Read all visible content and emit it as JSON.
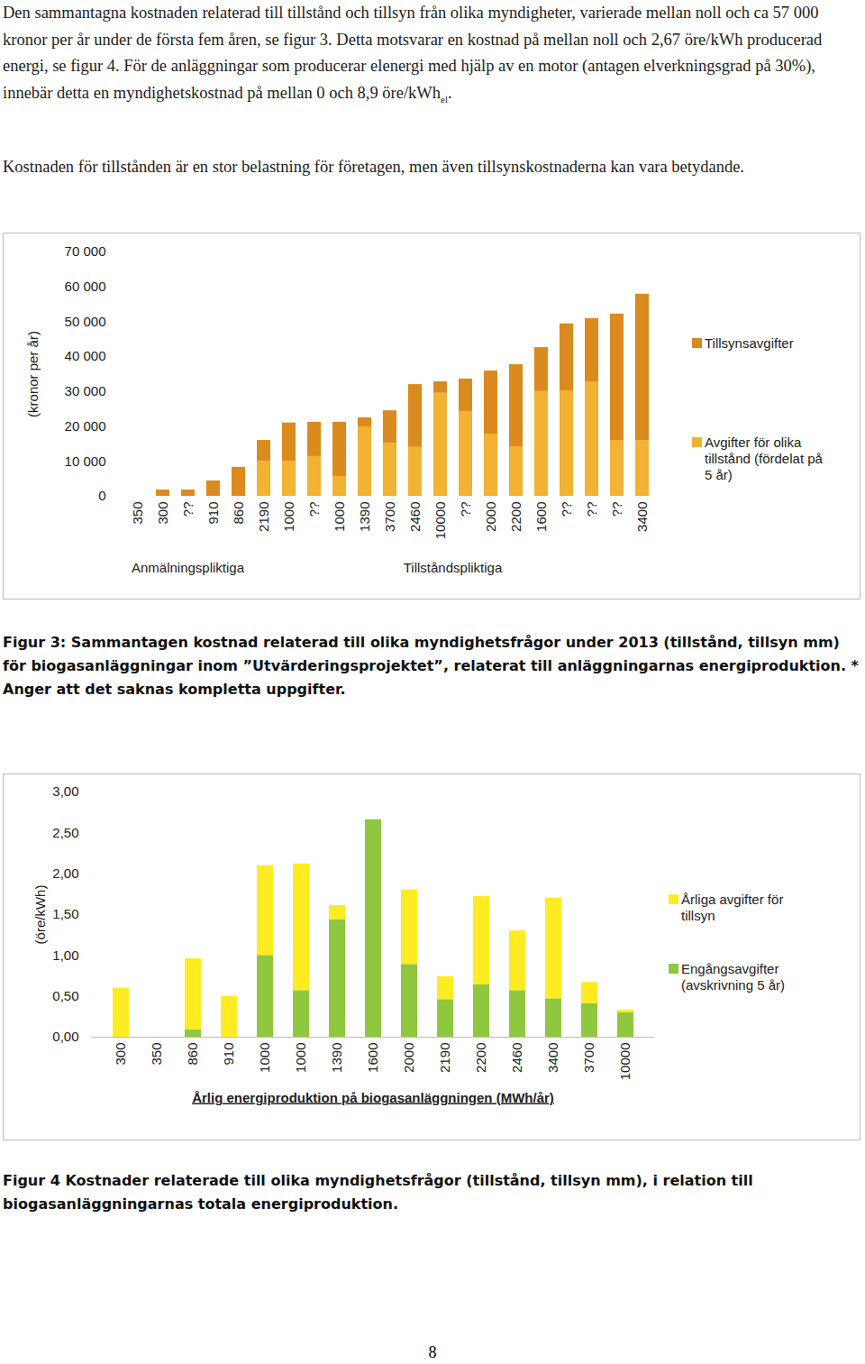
{
  "paragraphs": [
    {
      "text": "Den sammantagna kostnaden relaterad till tillstånd och tillsyn från olika myndigheter, varierade mellan noll och ca 57 000 kronor per år under de första fem åren, se figur 3. Detta motsvarar en kostnad på mellan noll och 2,67 öre/kWh producerad energi, se figur 4. För de anläggningar som producerar elenergi med hjälp av en motor (antagen elverkningsgrad på 30%), innebär detta en myndighetskostnad på mellan 0 och 8,9 öre/kWh",
      "subscript": "el",
      "tail": "."
    },
    {
      "text": "Kostnaden för tillstånden är en stor belastning för företagen, men även tillsynskostnaderna kan vara betydande."
    }
  ],
  "chart_data": [
    {
      "type": "bar",
      "stacked": true,
      "y_label": "(kronor per år)",
      "categories": [
        "350",
        "300",
        "??",
        "910",
        "860",
        "2190",
        "1000",
        "??",
        "1000",
        "1390",
        "3700",
        "2460",
        "10000",
        "??",
        "2000",
        "2200",
        "1600",
        "??",
        "??",
        "??",
        "3400"
      ],
      "groups": [
        {
          "name": "Anmälningspliktiga",
          "count": 5
        },
        {
          "name": "Tillståndspliktiga",
          "count": 16
        }
      ],
      "series": [
        {
          "name": "Avgifter för olika tillstånd (fördelat på 5 år)",
          "color": "#f2b232",
          "values": [
            0,
            0,
            0,
            0,
            0,
            10000,
            10000,
            11400,
            5700,
            19900,
            15200,
            14000,
            29500,
            24300,
            17800,
            14200,
            30000,
            30200,
            32800,
            16000,
            16000
          ]
        },
        {
          "name": "Tillsynsavgifter",
          "color": "#db8a1d",
          "values": [
            0,
            1800,
            1800,
            4400,
            8300,
            6000,
            11000,
            9800,
            15500,
            2600,
            9300,
            18000,
            3300,
            9300,
            18100,
            23500,
            12600,
            19200,
            18100,
            36200,
            41900
          ]
        }
      ],
      "ylim": [
        0,
        70000
      ],
      "yticks": [
        0,
        {
          "value": 10000,
          "label": "10 000"
        },
        {
          "value": 20000,
          "label": "20 000"
        },
        {
          "value": 30000,
          "label": "30 000"
        },
        {
          "value": 40000,
          "label": "40 000"
        },
        {
          "value": 50000,
          "label": "50 000"
        },
        {
          "value": 60000,
          "label": "60 000"
        },
        {
          "value": 70000,
          "label": "70 000"
        }
      ],
      "grid": false,
      "legend": "right",
      "caption": "Figur 3: Sammantagen kostnad relaterad till olika myndighetsfrågor under 2013 (tillstånd, tillsyn mm) för biogasanläggningar inom ”Utvärderingsprojektet”, relaterat till anläggningarnas energiproduktion. * Anger att det saknas kompletta uppgifter."
    },
    {
      "type": "bar",
      "stacked": true,
      "y_label": "(öre/kWh)",
      "x_label": "Årlig energiproduktion på biogasanläggningen (MWh/år)",
      "categories": [
        "300",
        "350",
        "860",
        "910",
        "1000",
        "1000",
        "1390",
        "1600",
        "2000",
        "2190",
        "2200",
        "2460",
        "3400",
        "3700",
        "10000"
      ],
      "series": [
        {
          "name": "Engångsavgifter (avskrivning 5 år)",
          "color": "#8fc73e",
          "values": [
            0,
            0,
            0.09,
            0,
            1.0,
            0.57,
            1.44,
            2.66,
            0.89,
            0.46,
            0.64,
            0.57,
            0.47,
            0.41,
            0.3
          ]
        },
        {
          "name": "Årliga avgifter för tillsyn",
          "color": "#fdec21",
          "values": [
            0.6,
            0,
            0.87,
            0.5,
            1.1,
            1.55,
            0.17,
            0,
            0.91,
            0.28,
            1.08,
            0.73,
            1.23,
            0.26,
            0.03
          ]
        }
      ],
      "ylim": [
        0,
        3
      ],
      "yticks": [
        {
          "value": 0,
          "label": "0,00"
        },
        {
          "value": 0.5,
          "label": "0,50"
        },
        {
          "value": 1,
          "label": "1,00"
        },
        {
          "value": 1.5,
          "label": "1,50"
        },
        {
          "value": 2,
          "label": "2,00"
        },
        {
          "value": 2.5,
          "label": "2,50"
        },
        {
          "value": 3,
          "label": "3,00"
        }
      ],
      "grid": false,
      "legend": "right",
      "caption": "Figur 4 Kostnader relaterade till olika myndighetsfrågor (tillstånd, tillsyn mm), i relation till biogasanläggningarnas totala energiproduktion."
    }
  ],
  "page_number": "8"
}
